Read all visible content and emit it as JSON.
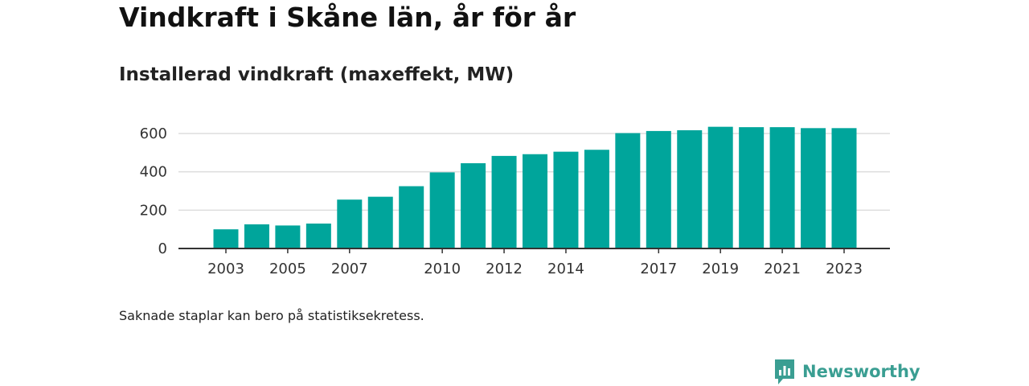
{
  "header": {
    "title": "Vindkraft i Skåne län, år för år",
    "subtitle": "Installerad vindkraft (maxeffekt, MW)"
  },
  "footer": {
    "note": "Saknade staplar kan bero på statistiksekretess.",
    "brand": "Newsworthy"
  },
  "colors": {
    "bar": "#00a59b",
    "grid": "#dddddd",
    "axis": "#333333",
    "brand": "#3a9e92"
  },
  "chart_data": {
    "type": "bar",
    "title": "Vindkraft i Skåne län, år för år",
    "subtitle": "Installerad vindkraft (maxeffekt, MW)",
    "categories": [
      "2003",
      "2004",
      "2005",
      "2006",
      "2007",
      "2008",
      "2009",
      "2010",
      "2011",
      "2012",
      "2013",
      "2014",
      "2015",
      "2016",
      "2017",
      "2018",
      "2019",
      "2020",
      "2021",
      "2022",
      "2023"
    ],
    "values": [
      100,
      126,
      120,
      130,
      255,
      270,
      325,
      397,
      445,
      483,
      492,
      505,
      515,
      602,
      613,
      617,
      635,
      633,
      633,
      628,
      628
    ],
    "tick_labels_x": [
      "2003",
      "2005",
      "2007",
      "2010",
      "2012",
      "2014",
      "2017",
      "2019",
      "2021",
      "2023"
    ],
    "yticks": [
      0,
      200,
      400,
      600
    ],
    "ylim": [
      0,
      640
    ],
    "grid": true,
    "legend": "none",
    "xlabel": "",
    "ylabel": ""
  }
}
